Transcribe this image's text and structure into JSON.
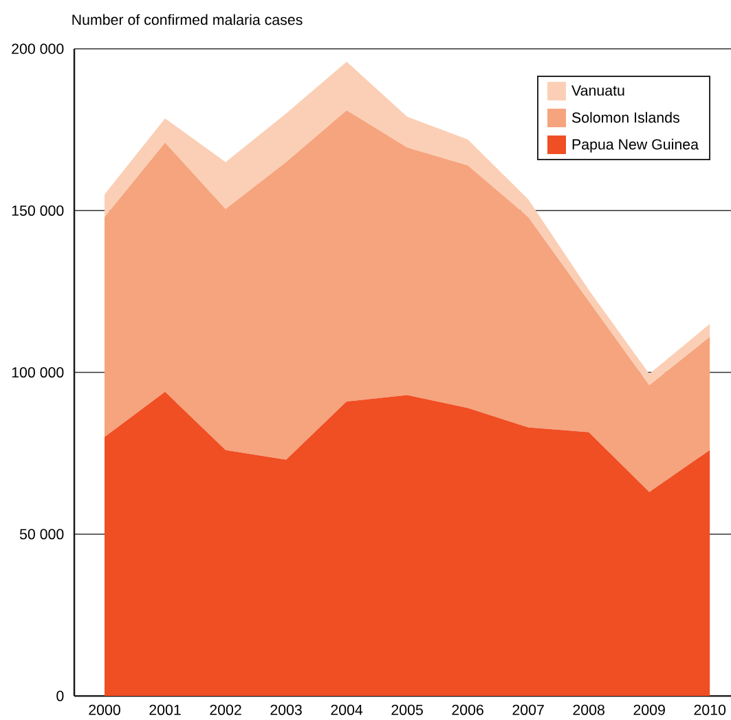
{
  "chart_data": {
    "type": "area",
    "stacked": true,
    "ylabel": "Number of confirmed malaria cases",
    "x": [
      2000,
      2001,
      2002,
      2003,
      2004,
      2005,
      2006,
      2007,
      2008,
      2009,
      2010
    ],
    "xlim": [
      1999.5,
      2010.35
    ],
    "xticks": [
      2000,
      2001,
      2002,
      2003,
      2004,
      2005,
      2006,
      2007,
      2008,
      2009,
      2010
    ],
    "ylim": [
      0,
      200000
    ],
    "yticks": [
      0,
      {
        "value": 50000,
        "label": "50 000"
      },
      {
        "value": 100000,
        "label": "100 000"
      },
      {
        "value": 150000,
        "label": "150 000"
      },
      {
        "value": 200000,
        "label": "200 000"
      }
    ],
    "grid": "y",
    "legend": "top right",
    "series": [
      {
        "name": "Papua New Guinea",
        "color": "#f04e23",
        "values": [
          80000,
          94000,
          76000,
          73000,
          91000,
          93000,
          89000,
          83000,
          81500,
          63000,
          76000
        ]
      },
      {
        "name": "Solomon Islands",
        "color": "#f5a47e",
        "values": [
          68000,
          77000,
          74500,
          92000,
          90000,
          76500,
          75000,
          65000,
          40500,
          33000,
          35000
        ]
      },
      {
        "name": "Vanuatu",
        "color": "#fbcfb5",
        "values": [
          7000,
          7500,
          14500,
          15000,
          15000,
          9500,
          8000,
          5500,
          3500,
          3500,
          4000
        ]
      }
    ]
  }
}
